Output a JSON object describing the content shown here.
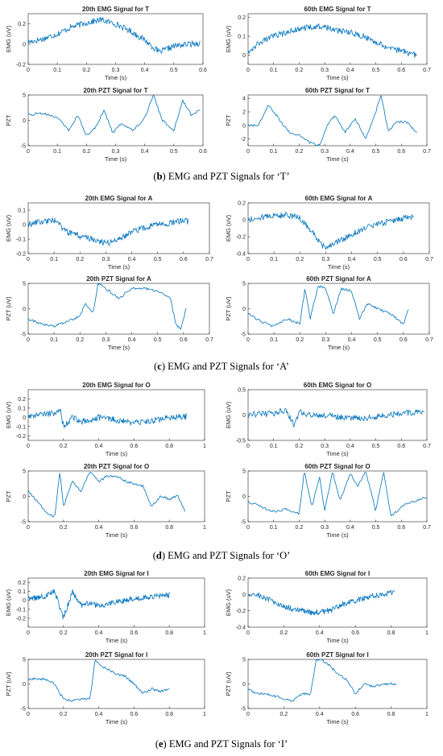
{
  "chart_data": [
    {
      "type": "line",
      "group": "b",
      "title": "20th EMG Signal for T",
      "xlabel": "Time (s)",
      "ylabel": "EMG (uV)",
      "xlim": [
        0,
        0.6
      ],
      "ylim": [
        -0.2,
        0.3
      ],
      "xticks": [
        "0",
        "0.1",
        "0.2",
        "0.3",
        "0.4",
        "0.5",
        "0.6"
      ],
      "yticks": [
        "-0.2",
        "0",
        "0.2"
      ],
      "series": [
        {
          "x": [
            0,
            0.05,
            0.1,
            0.15,
            0.2,
            0.25,
            0.3,
            0.35,
            0.4,
            0.45,
            0.5,
            0.55,
            0.59
          ],
          "values": [
            0.02,
            0.05,
            0.1,
            0.17,
            0.21,
            0.24,
            0.2,
            0.13,
            0.04,
            -0.08,
            -0.02,
            0.0,
            0.01
          ]
        }
      ]
    },
    {
      "type": "line",
      "group": "b",
      "title": "60th EMG Signal for T",
      "xlabel": "Time (s)",
      "ylabel": "EMG (uV)",
      "xlim": [
        0,
        0.7
      ],
      "ylim": [
        -0.05,
        0.22
      ],
      "xticks": [
        "0",
        "0.1",
        "0.2",
        "0.3",
        "0.4",
        "0.5",
        "0.6",
        "0.7"
      ],
      "yticks": [
        "0",
        "0.1",
        "0.2"
      ],
      "series": [
        {
          "x": [
            0,
            0.05,
            0.1,
            0.15,
            0.2,
            0.25,
            0.3,
            0.35,
            0.4,
            0.45,
            0.5,
            0.55,
            0.6,
            0.66
          ],
          "values": [
            0.02,
            0.07,
            0.1,
            0.12,
            0.14,
            0.15,
            0.15,
            0.13,
            0.12,
            0.1,
            0.07,
            0.04,
            0.02,
            0.0
          ]
        }
      ]
    },
    {
      "type": "line",
      "group": "b",
      "title": "20th PZT Signal for T",
      "xlabel": "Time (s)",
      "ylabel": "PZT",
      "xlim": [
        0,
        0.6
      ],
      "ylim": [
        -5,
        5
      ],
      "xticks": [
        "0",
        "0.1",
        "0.2",
        "0.3",
        "0.4",
        "0.5",
        "0.6"
      ],
      "yticks": [
        "-5",
        "0",
        "5"
      ],
      "series": [
        {
          "x": [
            0,
            0.05,
            0.1,
            0.14,
            0.17,
            0.2,
            0.23,
            0.26,
            0.29,
            0.32,
            0.36,
            0.4,
            0.43,
            0.46,
            0.5,
            0.53,
            0.56,
            0.59
          ],
          "values": [
            1,
            1.5,
            0.5,
            -2,
            1,
            -3,
            -1.5,
            2,
            -2.5,
            -0.5,
            -2,
            0.5,
            5,
            0,
            -2,
            4,
            1,
            2
          ]
        }
      ]
    },
    {
      "type": "line",
      "group": "b",
      "title": "60th PZT Signal for T",
      "xlabel": "Time (s)",
      "ylabel": "PZT",
      "xlim": [
        0,
        0.7
      ],
      "ylim": [
        -3,
        4.5
      ],
      "xticks": [
        "0",
        "0.1",
        "0.2",
        "0.3",
        "0.4",
        "0.5",
        "0.6",
        "0.7"
      ],
      "yticks": [
        "-2",
        "0",
        "2",
        "4"
      ],
      "series": [
        {
          "x": [
            0,
            0.04,
            0.08,
            0.12,
            0.16,
            0.2,
            0.24,
            0.28,
            0.31,
            0.34,
            0.38,
            0.42,
            0.46,
            0.5,
            0.52,
            0.55,
            0.58,
            0.62,
            0.66
          ],
          "values": [
            0,
            0,
            3,
            1,
            -1,
            -1.5,
            -2.5,
            -3,
            0,
            1.5,
            -1,
            1,
            -2,
            2,
            4.5,
            -1,
            0.5,
            0.5,
            -1
          ]
        }
      ]
    },
    {
      "type": "line",
      "group": "c",
      "title": "20th EMG Signal for A",
      "xlabel": "Time (s)",
      "ylabel": "EMG (uV)",
      "xlim": [
        0,
        0.7
      ],
      "ylim": [
        -0.2,
        0.15
      ],
      "xticks": [
        "0",
        "0.1",
        "0.2",
        "0.3",
        "0.4",
        "0.5",
        "0.6",
        "0.7"
      ],
      "yticks": [
        "-0.2",
        "-0.1",
        "0",
        "0.1"
      ],
      "series": [
        {
          "x": [
            0,
            0.05,
            0.1,
            0.15,
            0.2,
            0.25,
            0.3,
            0.35,
            0.4,
            0.45,
            0.5,
            0.55,
            0.6,
            0.62
          ],
          "values": [
            0.0,
            0.02,
            0.03,
            -0.05,
            -0.08,
            -0.1,
            -0.13,
            -0.1,
            -0.05,
            -0.02,
            0.0,
            0.01,
            0.03,
            0.02
          ]
        }
      ]
    },
    {
      "type": "line",
      "group": "c",
      "title": "60th EMG Signal for A",
      "xlabel": "Time (s)",
      "ylabel": "EMG (uV)",
      "xlim": [
        0,
        0.7
      ],
      "ylim": [
        -0.4,
        0.2
      ],
      "xticks": [
        "0",
        "0.1",
        "0.2",
        "0.3",
        "0.4",
        "0.5",
        "0.6",
        "0.7"
      ],
      "yticks": [
        "-0.4",
        "-0.2",
        "0",
        "0.2"
      ],
      "series": [
        {
          "x": [
            0,
            0.05,
            0.1,
            0.15,
            0.2,
            0.25,
            0.28,
            0.3,
            0.35,
            0.4,
            0.45,
            0.5,
            0.55,
            0.6,
            0.64
          ],
          "values": [
            0.0,
            0.03,
            0.05,
            0.06,
            0.02,
            -0.15,
            -0.28,
            -0.34,
            -0.25,
            -0.17,
            -0.1,
            -0.05,
            -0.02,
            0.02,
            0.03
          ]
        }
      ]
    },
    {
      "type": "line",
      "group": "c",
      "title": "20th PZT Signal for A",
      "xlabel": "Time (s)",
      "ylabel": "PZT (uV)",
      "xlim": [
        0,
        0.7
      ],
      "ylim": [
        -5,
        5
      ],
      "xticks": [
        "0",
        "0.1",
        "0.2",
        "0.3",
        "0.4",
        "0.5",
        "0.6",
        "0.7"
      ],
      "yticks": [
        "-5",
        "0",
        "5"
      ],
      "series": [
        {
          "x": [
            0,
            0.05,
            0.1,
            0.15,
            0.2,
            0.22,
            0.25,
            0.27,
            0.3,
            0.35,
            0.4,
            0.45,
            0.5,
            0.55,
            0.57,
            0.59,
            0.61
          ],
          "values": [
            -2,
            -3,
            -3.5,
            -2.5,
            -1.5,
            1,
            -1,
            5,
            4,
            2,
            4,
            4,
            3.5,
            2,
            -3,
            -4,
            0
          ]
        }
      ]
    },
    {
      "type": "line",
      "group": "c",
      "title": "60th PZT Signal for A",
      "xlabel": "Time (s)",
      "ylabel": "PZT (uV)",
      "xlim": [
        0,
        0.7
      ],
      "ylim": [
        -5,
        5
      ],
      "xticks": [
        "0",
        "0.1",
        "0.2",
        "0.3",
        "0.4",
        "0.5",
        "0.6",
        "0.7"
      ],
      "yticks": [
        "-5",
        "0",
        "5"
      ],
      "series": [
        {
          "x": [
            0,
            0.05,
            0.1,
            0.15,
            0.2,
            0.22,
            0.24,
            0.27,
            0.3,
            0.33,
            0.36,
            0.4,
            0.43,
            0.46,
            0.5,
            0.55,
            0.6,
            0.62
          ],
          "values": [
            -1,
            -2.5,
            -3.5,
            -2,
            -3,
            4,
            -2,
            4.5,
            4,
            -1,
            4,
            3.5,
            -2,
            1,
            0,
            -1,
            -3,
            0
          ]
        }
      ]
    },
    {
      "type": "line",
      "group": "d",
      "title": "20th EMG Signal for O",
      "xlabel": "Time (s)",
      "ylabel": "EMG (uV)",
      "xlim": [
        0,
        1
      ],
      "ylim": [
        -0.25,
        0.3
      ],
      "xticks": [
        "0",
        "0.2",
        "0.4",
        "0.6",
        "0.8",
        "1"
      ],
      "yticks": [
        "-0.2",
        "-0.1",
        "0",
        "0.1",
        "0.2"
      ],
      "series": [
        {
          "x": [
            0,
            0.1,
            0.15,
            0.18,
            0.2,
            0.25,
            0.3,
            0.4,
            0.5,
            0.6,
            0.7,
            0.8,
            0.9
          ],
          "values": [
            0.02,
            0.03,
            0.05,
            0.1,
            -0.1,
            0.0,
            -0.05,
            0.0,
            -0.03,
            -0.06,
            -0.04,
            0.0,
            0.01
          ]
        }
      ]
    },
    {
      "type": "line",
      "group": "d",
      "title": "60th EMG Signal for O",
      "xlabel": "Time (s)",
      "ylabel": "EMG (uV)",
      "xlim": [
        0,
        0.7
      ],
      "ylim": [
        -0.5,
        0.5
      ],
      "xticks": [
        "0",
        "0.1",
        "0.2",
        "0.3",
        "0.4",
        "0.5",
        "0.6",
        "0.7"
      ],
      "yticks": [
        "-0.5",
        "0",
        "0.5"
      ],
      "series": [
        {
          "x": [
            0,
            0.05,
            0.1,
            0.15,
            0.18,
            0.2,
            0.25,
            0.3,
            0.35,
            0.4,
            0.45,
            0.5,
            0.55,
            0.6,
            0.65,
            0.69
          ],
          "values": [
            0.0,
            0.02,
            0.03,
            0.1,
            -0.2,
            0.05,
            0.0,
            0.0,
            -0.03,
            -0.05,
            -0.06,
            -0.04,
            0.0,
            0.04,
            0.05,
            0.04
          ]
        }
      ]
    },
    {
      "type": "line",
      "group": "d",
      "title": "20th PZT Signal for O",
      "xlabel": "Time (s)",
      "ylabel": "PZT",
      "xlim": [
        0,
        1
      ],
      "ylim": [
        -5,
        5
      ],
      "xticks": [
        "0",
        "0.2",
        "0.4",
        "0.6",
        "0.8",
        "1"
      ],
      "yticks": [
        "-5",
        "0",
        "5"
      ],
      "series": [
        {
          "x": [
            0,
            0.05,
            0.1,
            0.15,
            0.18,
            0.2,
            0.25,
            0.3,
            0.35,
            0.4,
            0.45,
            0.5,
            0.55,
            0.6,
            0.65,
            0.7,
            0.75,
            0.8,
            0.85,
            0.89
          ],
          "values": [
            1,
            -1,
            -3,
            -4,
            5,
            -2,
            3,
            1,
            5,
            3,
            4,
            4,
            3,
            2.5,
            2,
            -2,
            0,
            -0.5,
            0,
            -3
          ]
        }
      ]
    },
    {
      "type": "line",
      "group": "d",
      "title": "60th PZT Signal for O",
      "xlabel": "Time (s)",
      "ylabel": "PZT",
      "xlim": [
        0,
        0.7
      ],
      "ylim": [
        -5,
        5
      ],
      "xticks": [
        "0",
        "0.1",
        "0.2",
        "0.3",
        "0.4",
        "0.5",
        "0.6",
        "0.7"
      ],
      "yticks": [
        "-5",
        "0",
        "5"
      ],
      "series": [
        {
          "x": [
            0,
            0.05,
            0.1,
            0.15,
            0.2,
            0.22,
            0.25,
            0.28,
            0.3,
            0.33,
            0.36,
            0.4,
            0.43,
            0.46,
            0.5,
            0.53,
            0.56,
            0.6,
            0.65,
            0.7
          ],
          "values": [
            -1,
            -2,
            -3,
            -2.5,
            -3.5,
            5,
            -2,
            4,
            -3,
            5,
            -1,
            4.5,
            2,
            5,
            -3,
            5,
            -4,
            -2,
            -1,
            0
          ]
        }
      ]
    },
    {
      "type": "line",
      "group": "e",
      "title": "20th EMG Signal for I",
      "xlabel": "Time (s)",
      "ylabel": "EMG (uV)",
      "xlim": [
        0,
        1
      ],
      "ylim": [
        -0.3,
        0.25
      ],
      "xticks": [
        "0",
        "0.2",
        "0.4",
        "0.6",
        "0.8",
        "1"
      ],
      "yticks": [
        "-0.2",
        "-0.1",
        "0",
        "0.1",
        "0.2"
      ],
      "series": [
        {
          "x": [
            0,
            0.05,
            0.1,
            0.15,
            0.2,
            0.25,
            0.3,
            0.35,
            0.4,
            0.45,
            0.5,
            0.55,
            0.6,
            0.65,
            0.7,
            0.75,
            0.8
          ],
          "values": [
            0.02,
            0.03,
            0.05,
            0.1,
            -0.2,
            0.1,
            -0.05,
            -0.03,
            -0.06,
            -0.04,
            -0.02,
            0.0,
            0.02,
            0.03,
            0.04,
            0.05,
            0.06
          ]
        }
      ]
    },
    {
      "type": "line",
      "group": "e",
      "title": "60th EMG Signal for I",
      "xlabel": "Time (s)",
      "ylabel": "EMG (uV)",
      "xlim": [
        0,
        1
      ],
      "ylim": [
        -0.4,
        0.2
      ],
      "xticks": [
        "0",
        "0.2",
        "0.4",
        "0.6",
        "0.8",
        "1"
      ],
      "yticks": [
        "-0.4",
        "-0.2",
        "0",
        "0.2"
      ],
      "series": [
        {
          "x": [
            0,
            0.05,
            0.1,
            0.15,
            0.2,
            0.25,
            0.3,
            0.35,
            0.4,
            0.45,
            0.5,
            0.55,
            0.6,
            0.65,
            0.7,
            0.75,
            0.8,
            0.82
          ],
          "values": [
            0.0,
            0.0,
            -0.05,
            -0.1,
            -0.15,
            -0.18,
            -0.2,
            -0.22,
            -0.22,
            -0.2,
            -0.15,
            -0.1,
            -0.08,
            -0.05,
            -0.02,
            0.0,
            0.02,
            0.02
          ]
        }
      ]
    },
    {
      "type": "line",
      "group": "e",
      "title": "20th PZT Signal for I",
      "xlabel": "Time (s)",
      "ylabel": "PZT (uV)",
      "xlim": [
        0,
        1
      ],
      "ylim": [
        -5,
        5
      ],
      "xticks": [
        "0",
        "0.2",
        "0.4",
        "0.6",
        "0.8",
        "1"
      ],
      "yticks": [
        "-5",
        "0",
        "5"
      ],
      "series": [
        {
          "x": [
            0,
            0.05,
            0.1,
            0.15,
            0.18,
            0.2,
            0.25,
            0.3,
            0.35,
            0.38,
            0.4,
            0.45,
            0.5,
            0.55,
            0.6,
            0.65,
            0.7,
            0.75,
            0.8
          ],
          "values": [
            1,
            1,
            1,
            0,
            -2,
            -3,
            -3.5,
            -3,
            -3,
            5,
            4,
            3,
            2,
            1.5,
            0,
            -2,
            -1,
            -1.5,
            -1
          ]
        }
      ]
    },
    {
      "type": "line",
      "group": "e",
      "title": "60th PZT Signal for I",
      "xlabel": "Time (s)",
      "ylabel": "PZT (uV)",
      "xlim": [
        0,
        1
      ],
      "ylim": [
        -5,
        5
      ],
      "xticks": [
        "0",
        "0.2",
        "0.4",
        "0.6",
        "0.8",
        "1"
      ],
      "yticks": [
        "-5",
        "0",
        "5"
      ],
      "series": [
        {
          "x": [
            0,
            0.05,
            0.1,
            0.15,
            0.2,
            0.25,
            0.3,
            0.35,
            0.38,
            0.4,
            0.45,
            0.5,
            0.55,
            0.6,
            0.65,
            0.7,
            0.75,
            0.8,
            0.83
          ],
          "values": [
            -1,
            -2,
            -2,
            -2.5,
            -3,
            -3.5,
            -2,
            -2,
            5,
            5,
            4,
            2,
            1,
            -2,
            0,
            -0.5,
            0,
            0,
            0
          ]
        }
      ]
    }
  ],
  "captions": {
    "b": {
      "letter": "b",
      "text": " EMG and PZT Signals for ‘T’"
    },
    "c": {
      "letter": "c",
      "text": " EMG and PZT Signals for ‘A’"
    },
    "d": {
      "letter": "d",
      "text": " EMG and PZT Signals for ‘O’"
    },
    "e": {
      "letter": "e",
      "text": " EMG and PZT Signals for ‘I’"
    }
  }
}
